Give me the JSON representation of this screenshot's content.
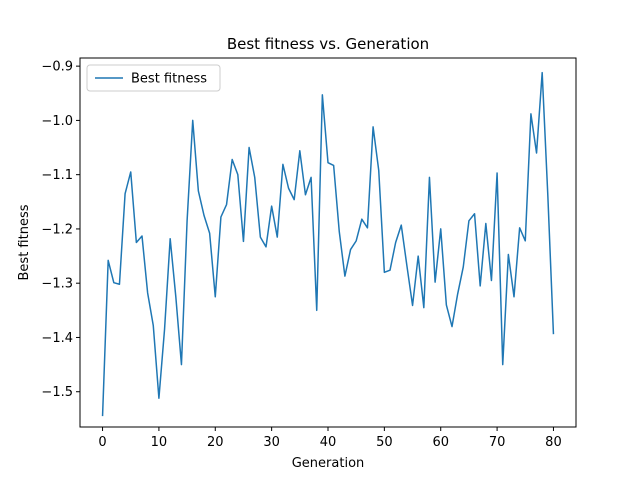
{
  "chart_data": {
    "type": "line",
    "title": "Best fitness vs. Generation",
    "xlabel": "Generation",
    "ylabel": "Best fitness",
    "xlim": [
      -4,
      84
    ],
    "ylim": [
      -1.565,
      -0.885
    ],
    "xticks": [
      0,
      10,
      20,
      30,
      40,
      50,
      60,
      70,
      80
    ],
    "yticks": [
      -1.5,
      -1.4,
      -1.3,
      -1.2,
      -1.1,
      -1.0,
      -0.9
    ],
    "grid": false,
    "legend": "upper-left",
    "series": [
      {
        "name": "Best fitness",
        "color": "#1f77b4",
        "x": [
          0,
          1,
          2,
          3,
          4,
          5,
          6,
          7,
          8,
          9,
          10,
          11,
          12,
          13,
          14,
          15,
          16,
          17,
          18,
          19,
          20,
          21,
          22,
          23,
          24,
          25,
          26,
          27,
          28,
          29,
          30,
          31,
          32,
          33,
          34,
          35,
          36,
          37,
          38,
          39,
          40,
          41,
          42,
          43,
          44,
          45,
          46,
          47,
          48,
          49,
          50,
          51,
          52,
          53,
          54,
          55,
          56,
          57,
          58,
          59,
          60,
          61,
          62,
          63,
          64,
          65,
          66,
          67,
          68,
          69,
          70,
          71,
          72,
          73,
          74,
          75,
          76,
          77,
          78,
          79,
          80
        ],
        "y": [
          -1.545,
          -1.258,
          -1.299,
          -1.302,
          -1.135,
          -1.095,
          -1.225,
          -1.213,
          -1.318,
          -1.378,
          -1.512,
          -1.385,
          -1.218,
          -1.325,
          -1.45,
          -1.185,
          -1.0,
          -1.13,
          -1.175,
          -1.208,
          -1.325,
          -1.178,
          -1.155,
          -1.072,
          -1.1,
          -1.223,
          -1.05,
          -1.105,
          -1.215,
          -1.233,
          -1.158,
          -1.215,
          -1.081,
          -1.125,
          -1.146,
          -1.056,
          -1.137,
          -1.105,
          -1.35,
          -0.953,
          -1.078,
          -1.083,
          -1.205,
          -1.287,
          -1.238,
          -1.222,
          -1.182,
          -1.198,
          -1.012,
          -1.092,
          -1.28,
          -1.276,
          -1.225,
          -1.193,
          -1.268,
          -1.341,
          -1.25,
          -1.345,
          -1.105,
          -1.298,
          -1.2,
          -1.34,
          -1.38,
          -1.32,
          -1.27,
          -1.185,
          -1.172,
          -1.305,
          -1.19,
          -1.295,
          -1.097,
          -1.45,
          -1.247,
          -1.325,
          -1.198,
          -1.222,
          -0.988,
          -1.06,
          -0.912,
          -1.138,
          -1.394
        ]
      }
    ]
  }
}
